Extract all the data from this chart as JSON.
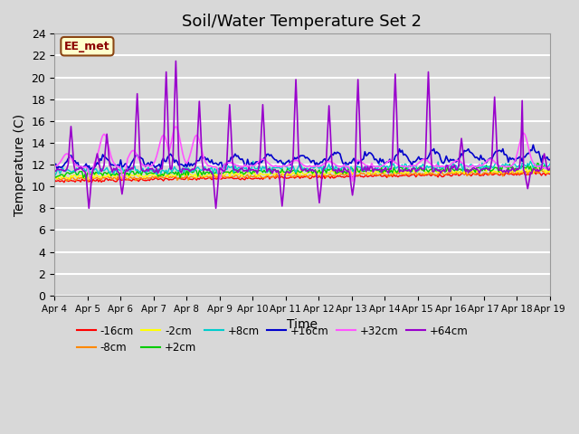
{
  "title": "Soil/Water Temperature Set 2",
  "xlabel": "Time",
  "ylabel": "Temperature (C)",
  "ylim": [
    0,
    24
  ],
  "date_labels": [
    "Apr 4",
    "Apr 5",
    "Apr 6",
    "Apr 7",
    "Apr 8",
    "Apr 9",
    "Apr 10",
    "Apr 11",
    "Apr 12",
    "Apr 13",
    "Apr 14",
    "Apr 15",
    "Apr 16",
    "Apr 17",
    "Apr 18",
    "Apr 19"
  ],
  "series_colors": {
    "-16cm": "#ff0000",
    "-8cm": "#ff8800",
    "-2cm": "#ffff00",
    "+2cm": "#00cc00",
    "+8cm": "#00cccc",
    "+16cm": "#0000cc",
    "+32cm": "#ff55ff",
    "+64cm": "#9900cc"
  },
  "annotation_text": "EE_met",
  "bg_color": "#d8d8d8",
  "plot_bg_color": "#d8d8d8",
  "grid_color": "#ffffff",
  "title_fontsize": 13
}
